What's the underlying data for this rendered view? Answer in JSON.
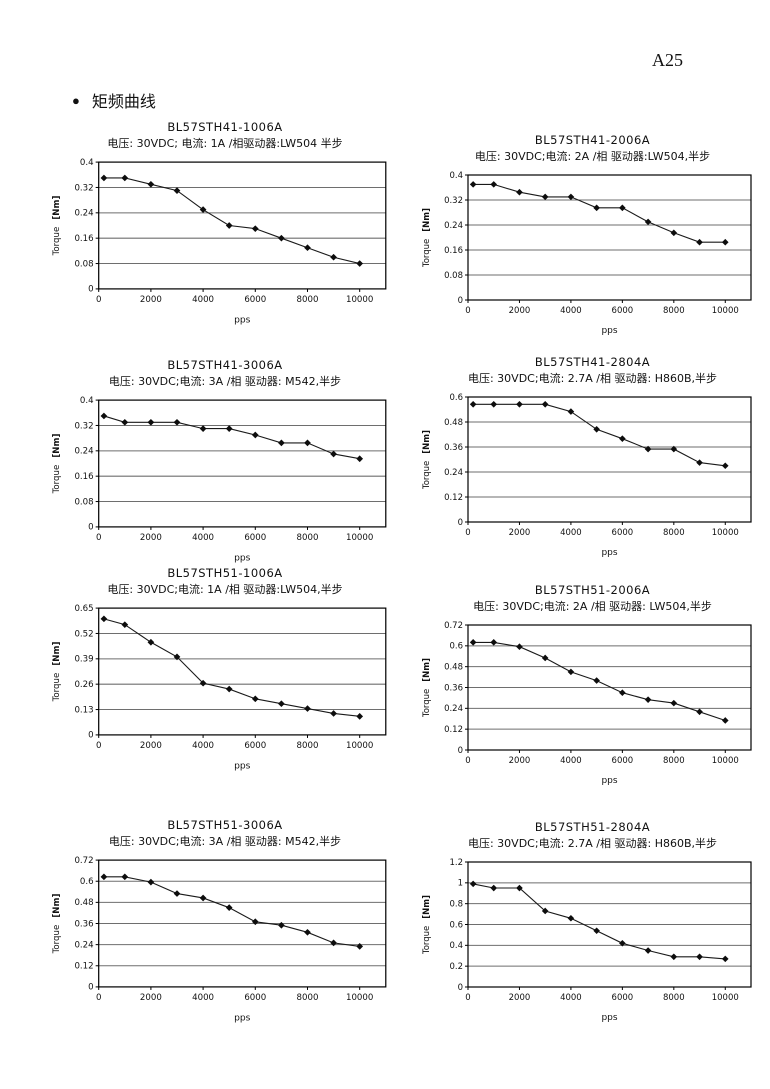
{
  "page": {
    "page_number": "A25",
    "heading": "矩频曲线",
    "bullet": "●"
  },
  "axis": {
    "ylabel_main": "Torque",
    "ylabel_unit": "[Nm]",
    "xlabel": "pps"
  },
  "chart_data": [
    {
      "type": "line",
      "title": "BL57STH41-1006A",
      "subtitle": "电压: 30VDC; 电流: 1A /相驱动器:LW504 半步",
      "xlabel": "pps",
      "ylabel": "Torque [Nm]",
      "x": [
        200,
        1000,
        2000,
        3000,
        4000,
        5000,
        6000,
        7000,
        8000,
        9000,
        10000
      ],
      "values": [
        0.35,
        0.35,
        0.33,
        0.31,
        0.25,
        0.2,
        0.19,
        0.16,
        0.13,
        0.1,
        0.08
      ],
      "xticks": [
        0,
        2000,
        4000,
        6000,
        8000,
        10000
      ],
      "yticks": [
        0,
        0.08,
        0.16,
        0.24,
        0.32,
        0.4
      ],
      "xlim": [
        0,
        11000
      ],
      "ylim": [
        0,
        0.4
      ],
      "grid": true,
      "legend": false
    },
    {
      "type": "line",
      "title": "BL57STH41-2006A",
      "subtitle": "电压: 30VDC;电流: 2A /相  驱动器:LW504,半步",
      "xlabel": "pps",
      "ylabel": "Torque [Nm]",
      "x": [
        200,
        1000,
        2000,
        3000,
        4000,
        5000,
        6000,
        7000,
        8000,
        9000,
        10000
      ],
      "values": [
        0.37,
        0.37,
        0.345,
        0.33,
        0.33,
        0.295,
        0.295,
        0.25,
        0.215,
        0.185,
        0.185
      ],
      "xticks": [
        0,
        2000,
        4000,
        6000,
        8000,
        10000
      ],
      "yticks": [
        0,
        0.08,
        0.16,
        0.24,
        0.32,
        0.4
      ],
      "xlim": [
        0,
        11000
      ],
      "ylim": [
        0,
        0.4
      ],
      "grid": true,
      "legend": false
    },
    {
      "type": "line",
      "title": "BL57STH41-3006A",
      "subtitle": "电压: 30VDC;电流: 3A /相  驱动器: M542,半步",
      "xlabel": "pps",
      "ylabel": "Torque [Nm]",
      "x": [
        200,
        1000,
        2000,
        3000,
        4000,
        5000,
        6000,
        7000,
        8000,
        9000,
        10000
      ],
      "values": [
        0.35,
        0.33,
        0.33,
        0.33,
        0.31,
        0.31,
        0.29,
        0.265,
        0.265,
        0.23,
        0.215
      ],
      "xticks": [
        0,
        2000,
        4000,
        6000,
        8000,
        10000
      ],
      "yticks": [
        0,
        0.08,
        0.16,
        0.24,
        0.32,
        0.4
      ],
      "xlim": [
        0,
        11000
      ],
      "ylim": [
        0,
        0.4
      ],
      "grid": true,
      "legend": false
    },
    {
      "type": "line",
      "title": "BL57STH41-2804A",
      "subtitle": "电压: 30VDC;电流: 2.7A /相  驱动器: H860B,半步",
      "xlabel": "pps",
      "ylabel": "Torque [Nm]",
      "x": [
        200,
        1000,
        2000,
        3000,
        4000,
        5000,
        6000,
        7000,
        8000,
        9000,
        10000
      ],
      "values": [
        0.565,
        0.565,
        0.565,
        0.565,
        0.53,
        0.445,
        0.4,
        0.35,
        0.35,
        0.285,
        0.27
      ],
      "xticks": [
        0,
        2000,
        4000,
        6000,
        8000,
        10000
      ],
      "yticks": [
        0,
        0.12,
        0.24,
        0.36,
        0.48,
        0.6
      ],
      "xlim": [
        0,
        11000
      ],
      "ylim": [
        0,
        0.6
      ],
      "grid": true,
      "legend": false
    },
    {
      "type": "line",
      "title": "BL57STH51-1006A",
      "subtitle": "电压: 30VDC;电流: 1A /相  驱动器:LW504,半步",
      "xlabel": "pps",
      "ylabel": "Torque [Nm]",
      "x": [
        200,
        1000,
        2000,
        3000,
        4000,
        5000,
        6000,
        7000,
        8000,
        9000,
        10000
      ],
      "values": [
        0.595,
        0.565,
        0.475,
        0.4,
        0.265,
        0.235,
        0.185,
        0.16,
        0.135,
        0.11,
        0.095
      ],
      "xticks": [
        0,
        2000,
        4000,
        6000,
        8000,
        10000
      ],
      "yticks": [
        0,
        0.13,
        0.26,
        0.39,
        0.52,
        0.65
      ],
      "xlim": [
        0,
        11000
      ],
      "ylim": [
        0,
        0.65
      ],
      "grid": true,
      "legend": false
    },
    {
      "type": "line",
      "title": "BL57STH51-2006A",
      "subtitle": "电压: 30VDC;电流: 2A /相  驱动器: LW504,半步",
      "xlabel": "pps",
      "ylabel": "Torque [Nm]",
      "x": [
        200,
        1000,
        2000,
        3000,
        4000,
        5000,
        6000,
        7000,
        8000,
        9000,
        10000
      ],
      "values": [
        0.62,
        0.62,
        0.595,
        0.53,
        0.45,
        0.4,
        0.33,
        0.29,
        0.27,
        0.22,
        0.17
      ],
      "xticks": [
        0,
        2000,
        4000,
        6000,
        8000,
        10000
      ],
      "yticks": [
        0,
        0.12,
        0.24,
        0.36,
        0.48,
        0.6,
        0.72
      ],
      "xlim": [
        0,
        11000
      ],
      "ylim": [
        0,
        0.72
      ],
      "grid": true,
      "legend": false
    },
    {
      "type": "line",
      "title": "BL57STH51-3006A",
      "subtitle": "电压: 30VDC;电流: 3A /相  驱动器: M542,半步",
      "xlabel": "pps",
      "ylabel": "Torque [Nm]",
      "x": [
        200,
        1000,
        2000,
        3000,
        4000,
        5000,
        6000,
        7000,
        8000,
        9000,
        10000
      ],
      "values": [
        0.625,
        0.625,
        0.595,
        0.53,
        0.505,
        0.45,
        0.37,
        0.35,
        0.31,
        0.25,
        0.23
      ],
      "xticks": [
        0,
        2000,
        4000,
        6000,
        8000,
        10000
      ],
      "yticks": [
        0,
        0.12,
        0.24,
        0.36,
        0.48,
        0.6,
        0.72
      ],
      "xlim": [
        0,
        11000
      ],
      "ylim": [
        0,
        0.72
      ],
      "grid": true,
      "legend": false
    },
    {
      "type": "line",
      "title": "BL57STH51-2804A",
      "subtitle": "电压: 30VDC;电流: 2.7A /相  驱动器: H860B,半步",
      "xlabel": "pps",
      "ylabel": "Torque [Nm]",
      "x": [
        200,
        1000,
        2000,
        3000,
        4000,
        5000,
        6000,
        7000,
        8000,
        9000,
        10000
      ],
      "values": [
        0.99,
        0.95,
        0.95,
        0.73,
        0.66,
        0.54,
        0.42,
        0.35,
        0.29,
        0.29,
        0.27
      ],
      "xticks": [
        0,
        2000,
        4000,
        6000,
        8000,
        10000
      ],
      "yticks": [
        0,
        0.2,
        0.4,
        0.6,
        0.8,
        1,
        1.2
      ],
      "xlim": [
        0,
        11000
      ],
      "ylim": [
        0,
        1.2
      ],
      "grid": true,
      "legend": false
    }
  ]
}
